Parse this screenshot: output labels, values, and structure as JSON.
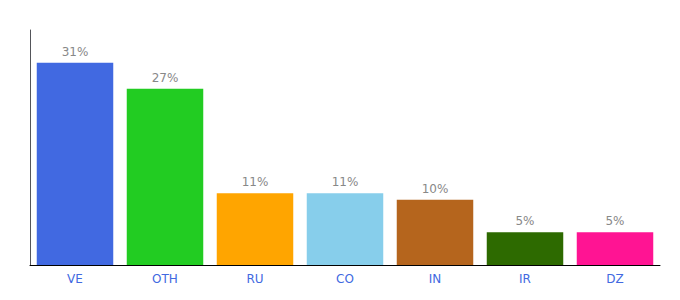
{
  "chart_data": {
    "type": "bar",
    "categories": [
      "VE",
      "OTH",
      "RU",
      "CO",
      "IN",
      "IR",
      "DZ"
    ],
    "values": [
      31,
      27,
      11,
      11,
      10,
      5,
      5
    ],
    "value_labels": [
      "31%",
      "27%",
      "11%",
      "11%",
      "10%",
      "5%",
      "5%"
    ],
    "colors": [
      "#4169e1",
      "#22cc22",
      "#ffa500",
      "#87ceeb",
      "#b5651d",
      "#2d6a00",
      "#ff1493"
    ],
    "ylim": [
      0,
      36
    ],
    "grid": false,
    "data_labels": true,
    "tick_labels": "x"
  }
}
